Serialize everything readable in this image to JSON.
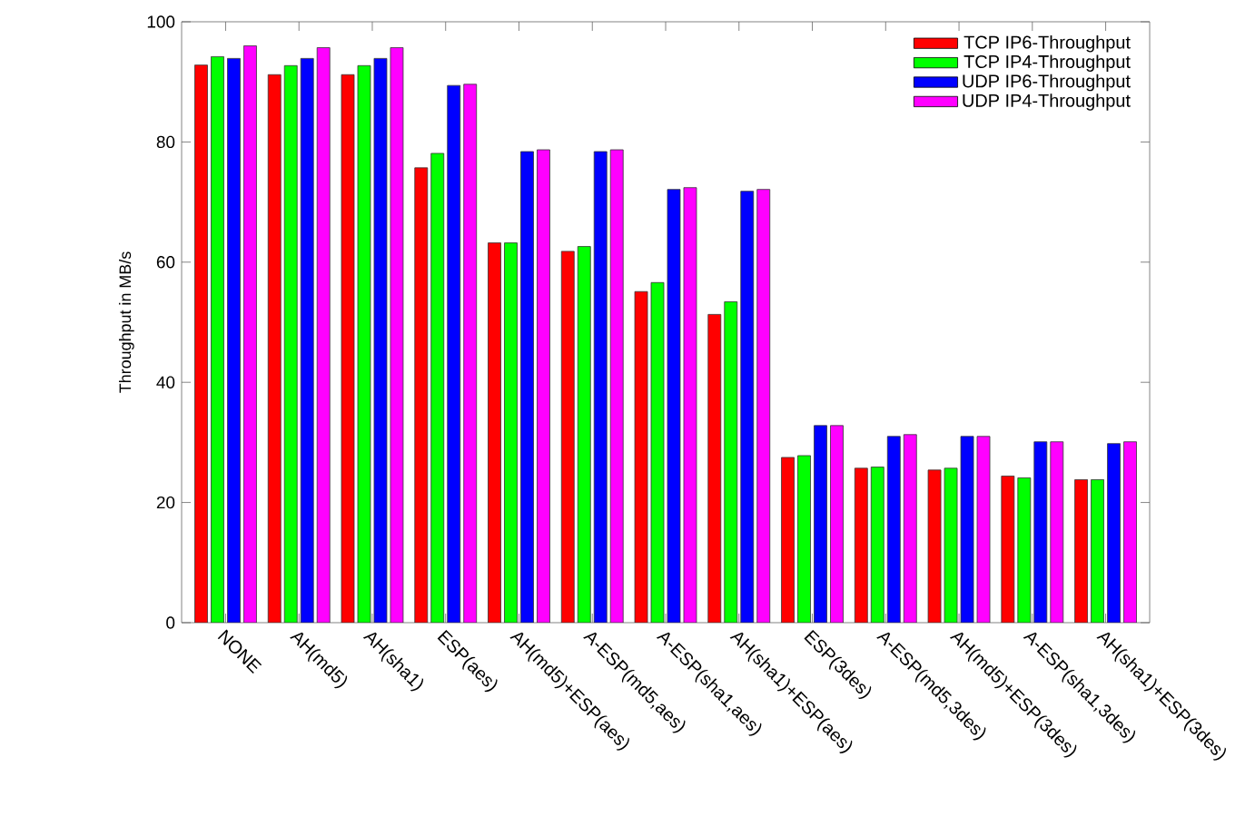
{
  "chart_data": {
    "type": "bar",
    "ylabel": "Throughput in MB/s",
    "categories": [
      "NONE",
      "AH(md5)",
      "AH(sha1)",
      "ESP(aes)",
      "AH(md5)+ESP(aes)",
      "A-ESP(md5,aes)",
      "A-ESP(sha1,aes)",
      "AH(sha1)+ESP(aes)",
      "ESP(3des)",
      "A-ESP(md5,3des)",
      "AH(md5)+ESP(3des)",
      "A-ESP(sha1,3des)",
      "AH(sha1)+ESP(3des)"
    ],
    "series": [
      {
        "name": "TCP IP6-Throughput",
        "color": "#ff0000",
        "values": [
          92.8,
          91.2,
          91.2,
          75.7,
          63.2,
          61.8,
          55.1,
          51.3,
          27.5,
          25.7,
          25.4,
          24.4,
          23.8
        ]
      },
      {
        "name": "TCP IP4-Throughput",
        "color": "#00ff00",
        "values": [
          94.2,
          92.7,
          92.7,
          78.1,
          63.2,
          62.6,
          56.6,
          53.4,
          27.8,
          25.9,
          25.7,
          24.1,
          23.8
        ]
      },
      {
        "name": "UDP IP6-Throughput",
        "color": "#0000ff",
        "values": [
          93.9,
          93.9,
          93.9,
          89.4,
          78.4,
          78.4,
          72.1,
          71.8,
          32.8,
          31.0,
          31.0,
          30.1,
          29.8
        ]
      },
      {
        "name": "UDP IP4-Throughput",
        "color": "#ff00ff",
        "values": [
          96.0,
          95.7,
          95.7,
          89.6,
          78.7,
          78.7,
          72.4,
          72.1,
          32.8,
          31.3,
          31.0,
          30.1,
          30.1
        ]
      }
    ],
    "ylim": [
      0,
      100
    ],
    "yticks": [
      0,
      20,
      40,
      60,
      80,
      100
    ],
    "legend": "top right",
    "grid": false
  }
}
